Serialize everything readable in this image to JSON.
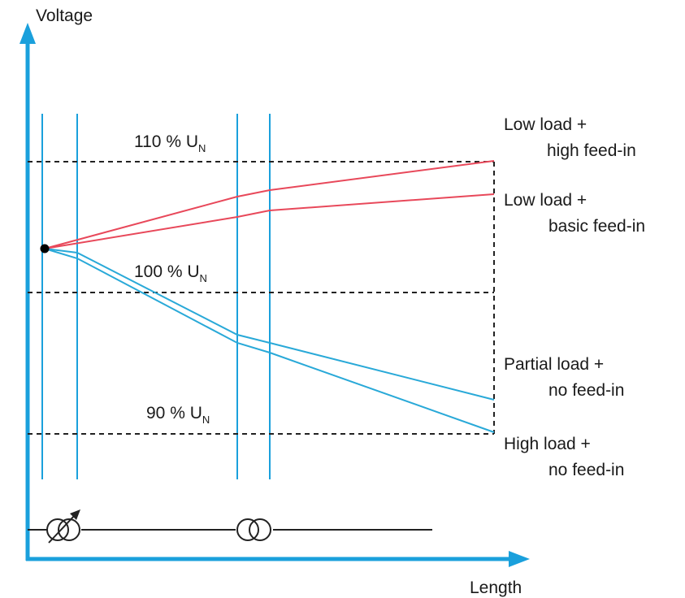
{
  "axes": {
    "y_label": "Voltage",
    "x_label": "Length"
  },
  "levels": [
    {
      "id": "110",
      "text": "110 % U",
      "subscript": "N"
    },
    {
      "id": "100",
      "text": "100 % U",
      "subscript": "N"
    },
    {
      "id": "90",
      "text": "90 % U",
      "subscript": "N"
    }
  ],
  "cases": [
    {
      "id": "low-high",
      "line1": "Low load +",
      "line2": "high feed-in",
      "color": "#e8485a"
    },
    {
      "id": "low-basic",
      "line1": "Low load +",
      "line2": "basic feed-in",
      "color": "#e8485a"
    },
    {
      "id": "partial-none",
      "line1": "Partial load +",
      "line2": "no feed-in",
      "color": "#29a9d8"
    },
    {
      "id": "high-none",
      "line1": "High load +",
      "line2": "no feed-in",
      "color": "#29a9d8"
    }
  ],
  "colors": {
    "axis": "#1aa0dc",
    "divider": "#1aa0dc",
    "reference": "#222222"
  },
  "symbols": [
    "tap-changer-transformer-icon",
    "transformer-icon"
  ]
}
